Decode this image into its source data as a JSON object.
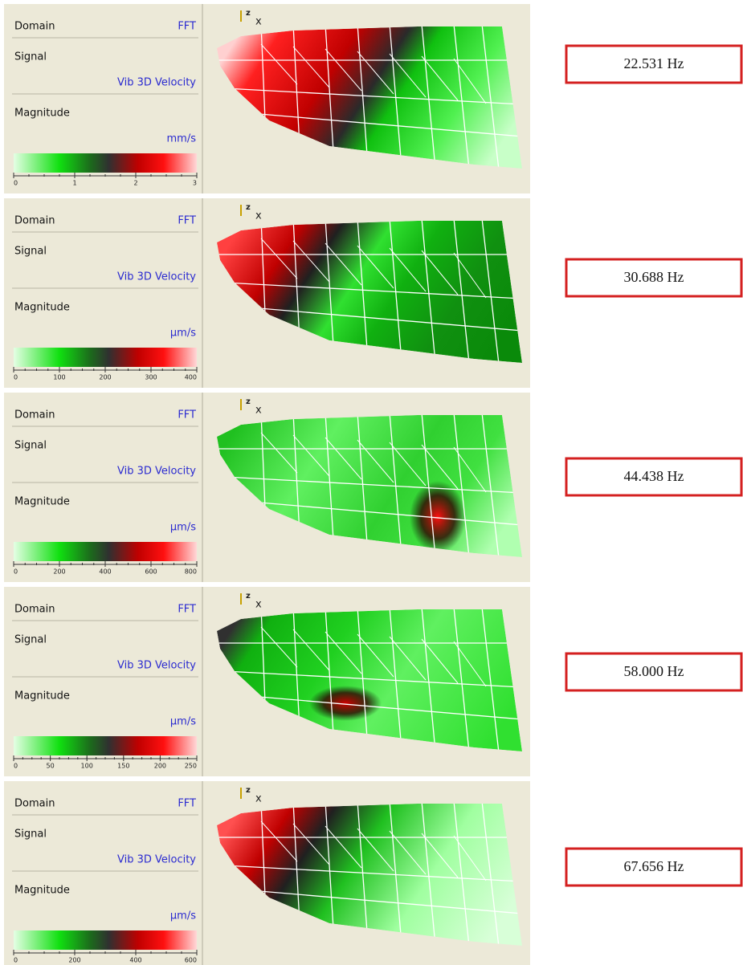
{
  "axis_icon": {
    "z": "z",
    "x": "x"
  },
  "panels": [
    {
      "domain_label": "Domain",
      "domain_value": "FFT",
      "signal_label": "Signal",
      "signal_value": "Vib 3D Velocity",
      "magnitude_label": "Magnitude",
      "unit": "mm/s",
      "scale_ticks": [
        "0",
        "1",
        "2",
        "3"
      ],
      "frequency": "22.531 Hz"
    },
    {
      "domain_label": "Domain",
      "domain_value": "FFT",
      "signal_label": "Signal",
      "signal_value": "Vib 3D Velocity",
      "magnitude_label": "Magnitude",
      "unit": "µm/s",
      "scale_ticks": [
        "0",
        "100",
        "200",
        "300",
        "400"
      ],
      "frequency": "30.688 Hz"
    },
    {
      "domain_label": "Domain",
      "domain_value": "FFT",
      "signal_label": "Signal",
      "signal_value": "Vib 3D Velocity",
      "magnitude_label": "Magnitude",
      "unit": "µm/s",
      "scale_ticks": [
        "0",
        "200",
        "400",
        "600",
        "800"
      ],
      "frequency": "44.438 Hz"
    },
    {
      "domain_label": "Domain",
      "domain_value": "FFT",
      "signal_label": "Signal",
      "signal_value": "Vib 3D Velocity",
      "magnitude_label": "Magnitude",
      "unit": "µm/s",
      "scale_ticks": [
        "0",
        "50",
        "100",
        "150",
        "200",
        "250"
      ],
      "frequency": "58.000 Hz"
    },
    {
      "domain_label": "Domain",
      "domain_value": "FFT",
      "signal_label": "Signal",
      "signal_value": "Vib 3D Velocity",
      "magnitude_label": "Magnitude",
      "unit": "µm/s",
      "scale_ticks": [
        "0",
        "200",
        "400",
        "600"
      ],
      "frequency": "67.656 Hz"
    }
  ]
}
